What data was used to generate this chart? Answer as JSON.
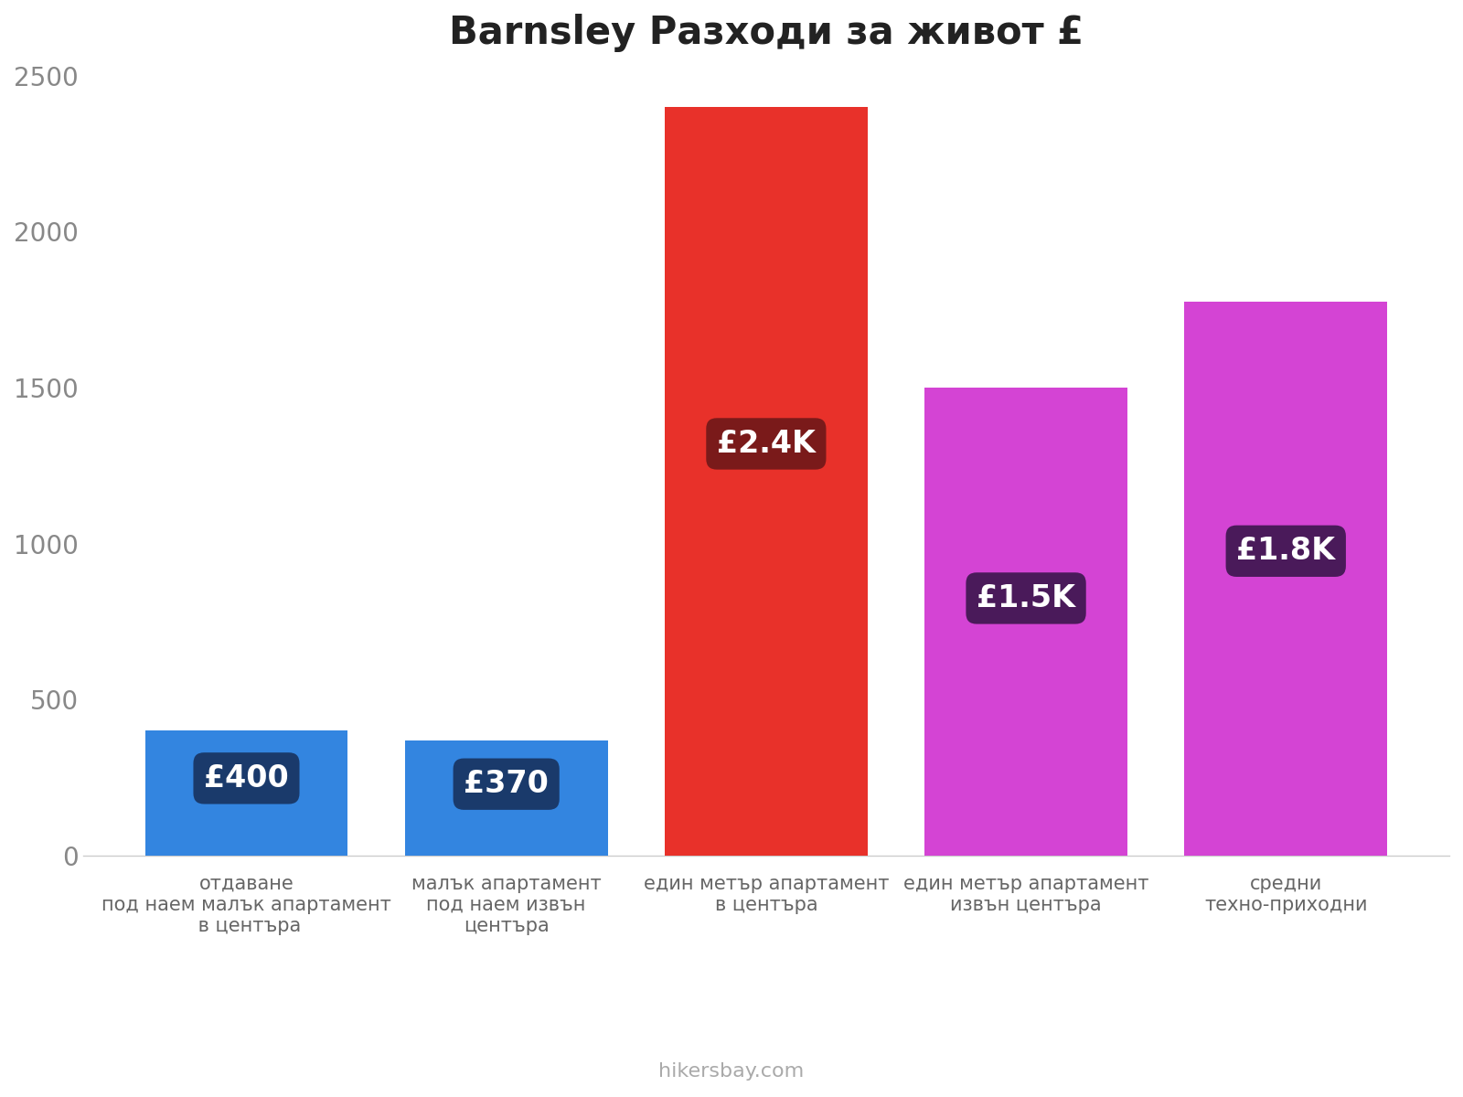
{
  "title": "Barnsley Разходи за живот £",
  "categories": [
    "отдаване\nпод наем малък апартамент\n в центъра",
    "малък апартамент\nпод наем извън\nцентъра",
    "един метър апартамент\nв центъра",
    "един метър апартамент\nизвън центъра",
    "средни\nтехно-приходни"
  ],
  "values": [
    400,
    370,
    2400,
    1500,
    1775
  ],
  "bar_colors": [
    "#3385e0",
    "#3385e0",
    "#e8312a",
    "#d444d4",
    "#d444d4"
  ],
  "label_texts": [
    "£400",
    "£370",
    "£2.4K",
    "£1.5K",
    "£1.8K"
  ],
  "label_bg_colors": [
    "#1a3a6b",
    "#1a3a6b",
    "#7a1a1a",
    "#4a1a5a",
    "#4a1a5a"
  ],
  "ylim": [
    0,
    2500
  ],
  "yticks": [
    0,
    500,
    1000,
    1500,
    2000,
    2500
  ],
  "footer_text": "hikersbay.com",
  "title_fontsize": 30,
  "label_fontsize": 24,
  "tick_fontsize": 20,
  "xtick_fontsize": 15,
  "footer_fontsize": 16
}
